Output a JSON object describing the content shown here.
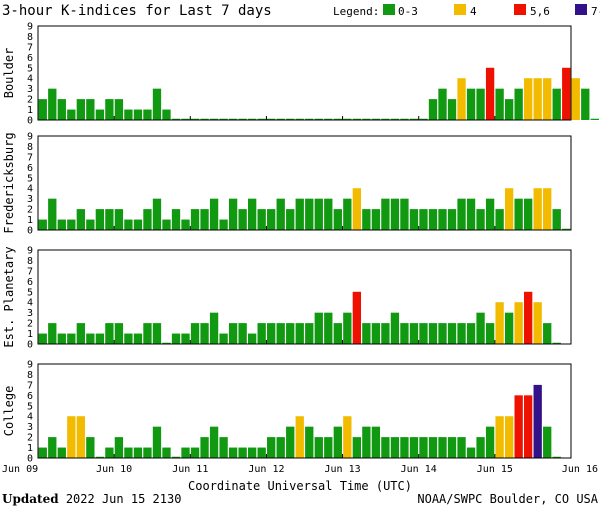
{
  "title": "3-hour K-indices for Last 7 days",
  "legend": {
    "label": "Legend:",
    "items": [
      {
        "label": "0-3",
        "color": "#119911"
      },
      {
        "label": "4",
        "color": "#f2bb00"
      },
      {
        "label": "5,6",
        "color": "#ee1100"
      },
      {
        "label": "7-9",
        "color": "#331188"
      }
    ]
  },
  "footer": {
    "updated_label": "Updated",
    "updated_value": "2022 Jun 15 2130",
    "source": "NOAA/SWPC Boulder, CO USA"
  },
  "chart_data": {
    "type": "bar",
    "xlabel": "Coordinate Universal Time (UTC)",
    "x_ticks": [
      "Jun 09",
      "Jun 10",
      "Jun 11",
      "Jun 12",
      "Jun 13",
      "Jun 14",
      "Jun 15",
      "Jun 16"
    ],
    "y_ticks": [
      "0",
      "1",
      "2",
      "3",
      "4",
      "5",
      "6",
      "7",
      "8",
      "9"
    ],
    "ylim": [
      0,
      9
    ],
    "grid": false,
    "intervals_per_day": 8,
    "series": [
      {
        "name": "Boulder",
        "values": [
          2,
          3,
          2,
          1,
          2,
          2,
          1,
          2,
          2,
          1,
          1,
          1,
          3,
          1,
          0,
          0,
          0,
          0,
          0,
          0,
          0,
          0,
          0,
          0,
          0,
          0,
          0,
          0,
          0,
          0,
          0,
          0,
          0,
          0,
          0,
          0,
          0,
          0,
          0,
          0,
          0,
          2,
          3,
          2,
          4,
          3,
          3,
          5,
          3,
          2,
          3,
          4,
          4,
          4,
          3,
          5,
          4,
          3,
          0
        ]
      },
      {
        "name": "Fredericksburg",
        "values": [
          1,
          3,
          1,
          1,
          2,
          1,
          2,
          2,
          2,
          1,
          1,
          2,
          3,
          1,
          2,
          1,
          2,
          2,
          3,
          1,
          3,
          2,
          3,
          2,
          2,
          3,
          2,
          3,
          3,
          3,
          3,
          2,
          3,
          4,
          2,
          2,
          3,
          3,
          3,
          2,
          2,
          2,
          2,
          2,
          3,
          3,
          2,
          3,
          2,
          4,
          3,
          3,
          4,
          4,
          2,
          0
        ]
      },
      {
        "name": "Est. Planetary",
        "values": [
          1,
          2,
          1,
          1,
          2,
          1,
          1,
          2,
          2,
          1,
          1,
          2,
          2,
          0,
          1,
          1,
          2,
          2,
          3,
          1,
          2,
          2,
          1,
          2,
          2,
          2,
          2,
          2,
          2,
          3,
          3,
          2,
          3,
          5,
          2,
          2,
          2,
          3,
          2,
          2,
          2,
          2,
          2,
          2,
          2,
          2,
          3,
          2,
          4,
          3,
          4,
          5,
          4,
          2,
          0
        ]
      },
      {
        "name": "College",
        "values": [
          1,
          2,
          1,
          4,
          4,
          2,
          0,
          1,
          2,
          1,
          1,
          1,
          3,
          1,
          0,
          1,
          1,
          2,
          3,
          2,
          1,
          1,
          1,
          1,
          2,
          2,
          3,
          4,
          3,
          2,
          2,
          3,
          4,
          2,
          3,
          3,
          2,
          2,
          2,
          2,
          2,
          2,
          2,
          2,
          2,
          1,
          2,
          3,
          4,
          4,
          6,
          6,
          7,
          3,
          0
        ]
      }
    ]
  }
}
